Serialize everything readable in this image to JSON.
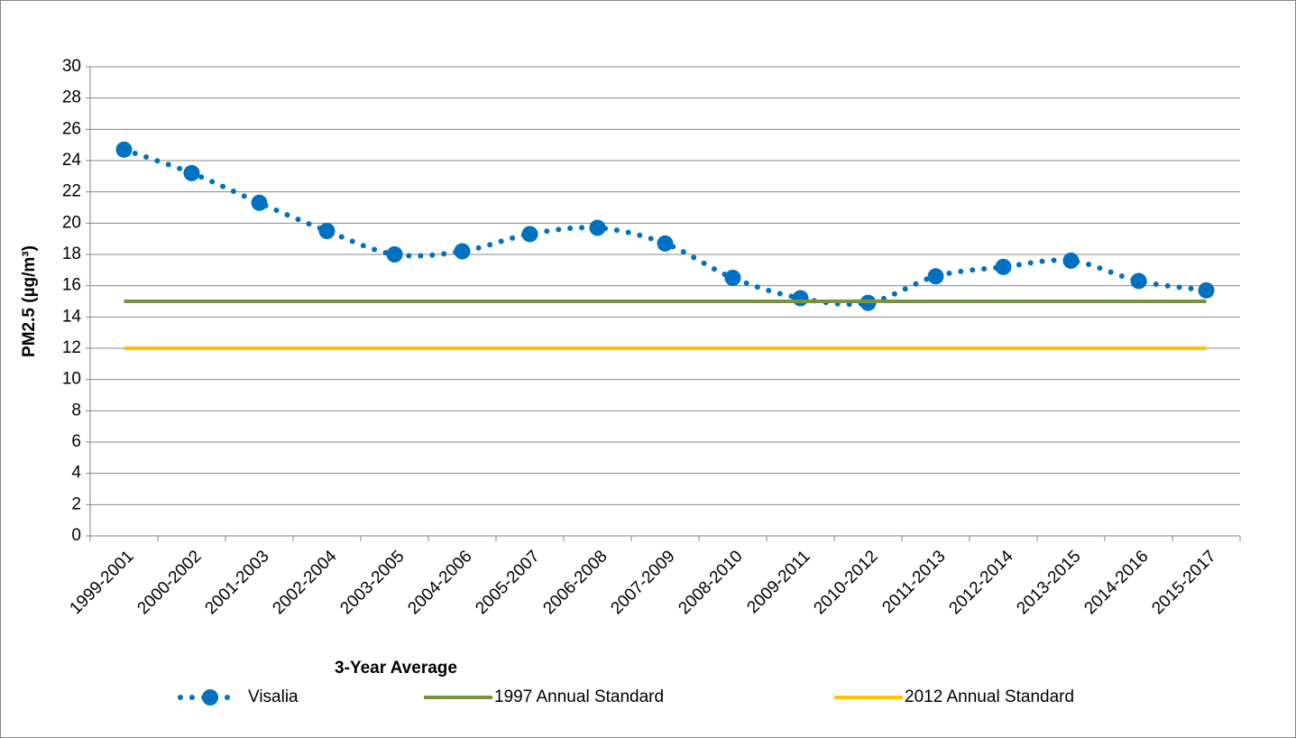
{
  "chart_data": {
    "type": "line",
    "x_label": "3-Year Average",
    "y_label": "PM2.5 (µg/m³)",
    "categories": [
      "1999-2001",
      "2000-2002",
      "2001-2003",
      "2002-2004",
      "2003-2005",
      "2004-2006",
      "2005-2007",
      "2006-2008",
      "2007-2009",
      "2008-2010",
      "2009-2011",
      "2010-2012",
      "2011-2013",
      "2012-2014",
      "2013-2015",
      "2014-2016",
      "2015-2017"
    ],
    "series": [
      {
        "name": "Visalia",
        "color": "#0070c0",
        "values": [
          24.7,
          23.2,
          21.3,
          19.5,
          18.0,
          18.2,
          19.3,
          19.7,
          18.7,
          16.5,
          15.2,
          14.9,
          16.6,
          17.2,
          17.6,
          16.3,
          15.7
        ]
      },
      {
        "name": "1997 Annual Standard",
        "color": "#77933c",
        "values": [
          15,
          15,
          15,
          15,
          15,
          15,
          15,
          15,
          15,
          15,
          15,
          15,
          15,
          15,
          15,
          15,
          15
        ]
      },
      {
        "name": "2012 Annual Standard",
        "color": "#ffc000",
        "values": [
          12,
          12,
          12,
          12,
          12,
          12,
          12,
          12,
          12,
          12,
          12,
          12,
          12,
          12,
          12,
          12,
          12
        ]
      }
    ],
    "ylim": [
      0,
      30
    ],
    "yticks": [
      0,
      2,
      4,
      6,
      8,
      10,
      12,
      14,
      16,
      18,
      20,
      22,
      24,
      26,
      28,
      30
    ],
    "grid": true,
    "legend": "bottom"
  }
}
